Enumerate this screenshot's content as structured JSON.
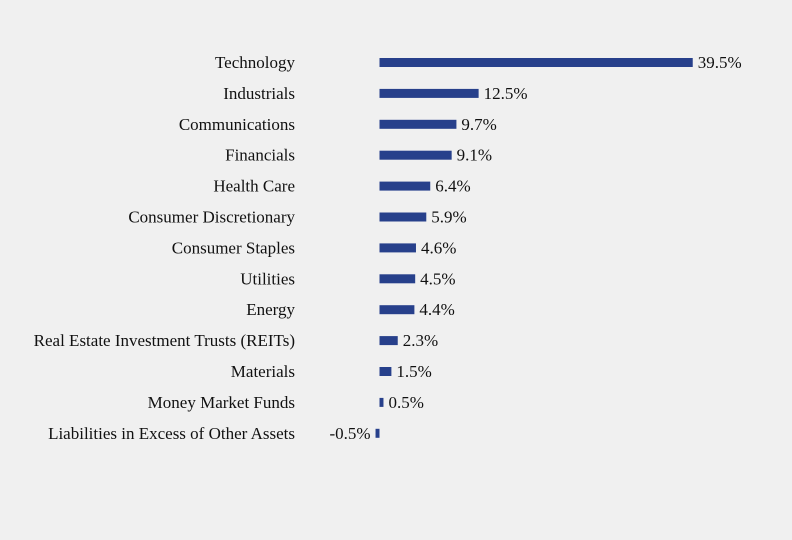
{
  "chart_data": {
    "type": "bar",
    "orientation": "horizontal",
    "categories": [
      "Technology",
      "Industrials",
      "Communications",
      "Financials",
      "Health Care",
      "Consumer Discretionary",
      "Consumer Staples",
      "Utilities",
      "Energy",
      "Real Estate Investment Trusts (REITs)",
      "Materials",
      "Money Market Funds",
      "Liabilities in Excess of Other Assets"
    ],
    "values": [
      39.5,
      12.5,
      9.7,
      9.1,
      6.4,
      5.9,
      4.6,
      4.5,
      4.4,
      2.3,
      1.5,
      0.5,
      -0.5
    ],
    "value_labels": [
      "39.5%",
      "12.5%",
      "9.7%",
      "9.1%",
      "6.4%",
      "5.9%",
      "4.6%",
      "4.5%",
      "4.4%",
      "2.3%",
      "1.5%",
      "0.5%",
      "-0.5%"
    ],
    "bar_color": "#27408b",
    "background_color": "#f0f0f0",
    "title": "",
    "xlabel": "",
    "ylabel": "",
    "grid": false,
    "legend": "none"
  }
}
